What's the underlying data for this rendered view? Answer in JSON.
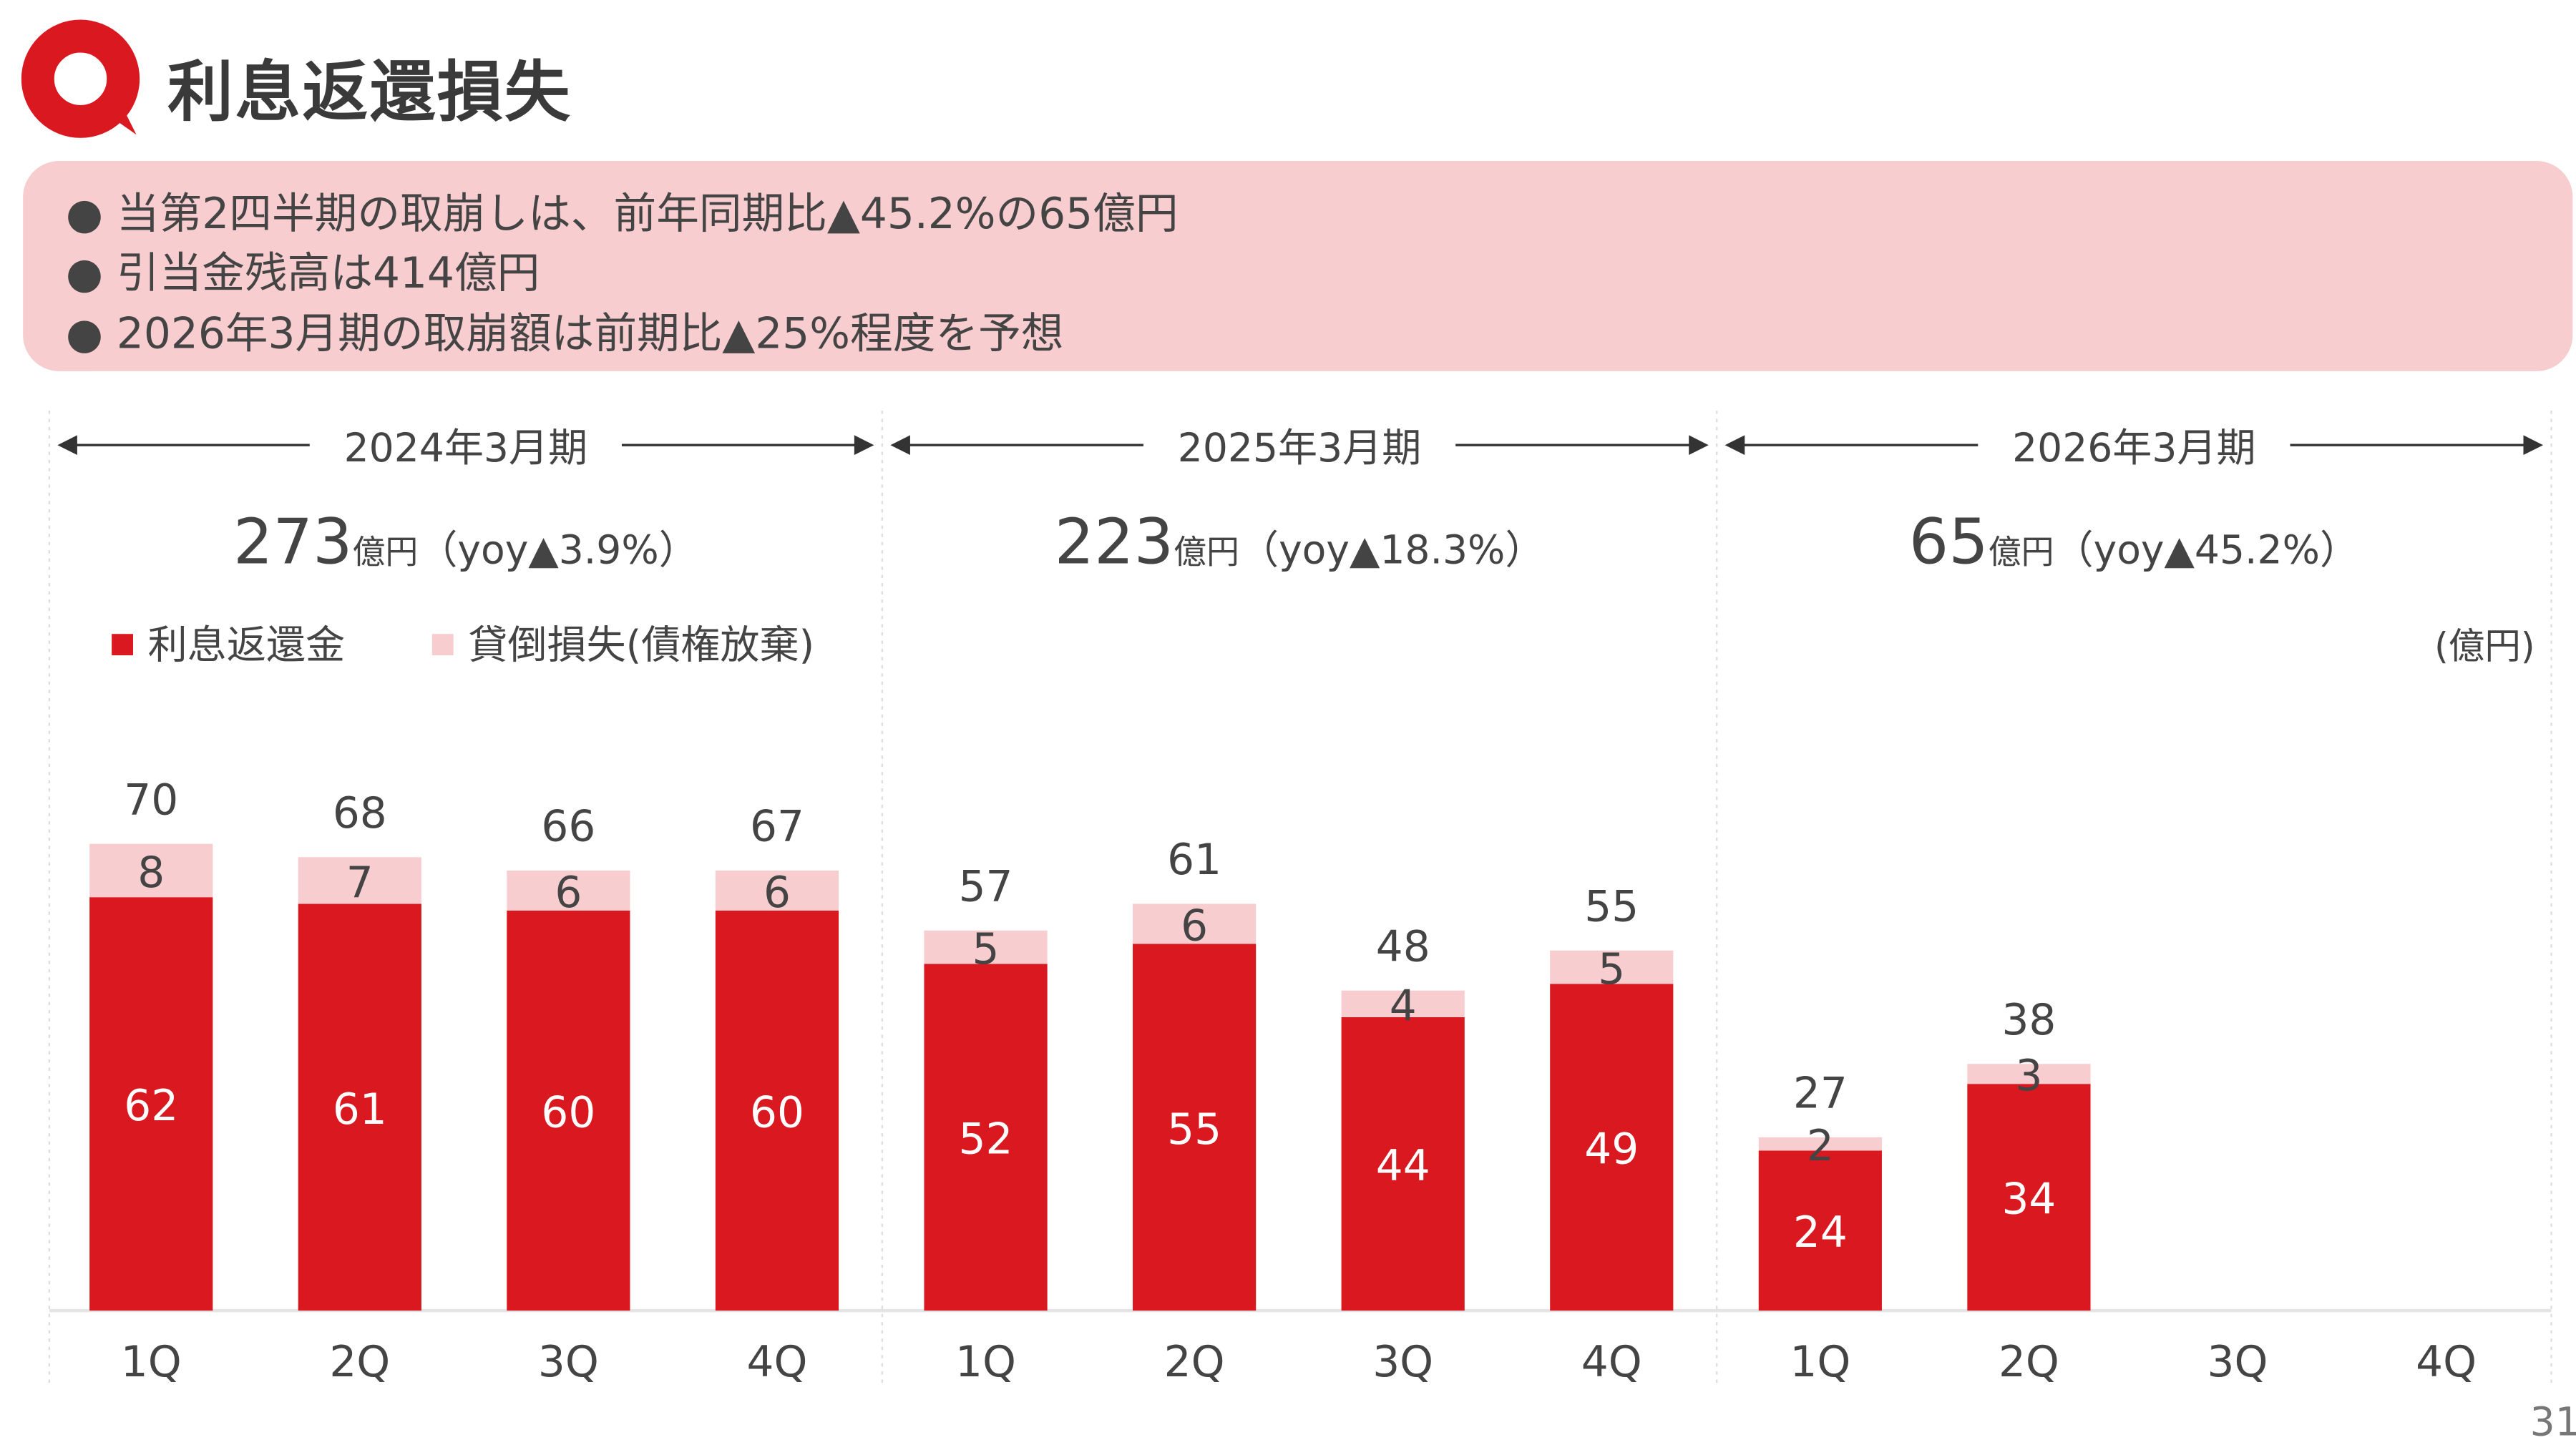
{
  "title": "利息返還損失",
  "summary": {
    "bullets": [
      "● 当第2四半期の取崩しは、前年同期比▲45.2%の65億円",
      "● 引当金残高は414億円",
      "● 2026年3月期の取崩額は前期比▲25%程度を予想"
    ]
  },
  "page_number": "31",
  "colors": {
    "primary": "#d9181f",
    "secondary": "#f8cdd0",
    "summary_bg": "#f8cdd0"
  },
  "chart_data": {
    "type": "bar",
    "stacked": true,
    "unit": "(億円)",
    "periods": [
      {
        "label": "2024年3月期",
        "total": "273",
        "total_unit": "億円",
        "yoy": "（yoy▲3.9%）"
      },
      {
        "label": "2025年3月期",
        "total": "223",
        "total_unit": "億円",
        "yoy": "（yoy▲18.3%）"
      },
      {
        "label": "2026年3月期",
        "total": "65",
        "total_unit": "億円",
        "yoy": "（yoy▲45.2%）"
      }
    ],
    "categories": [
      "1Q",
      "2Q",
      "3Q",
      "4Q",
      "1Q",
      "2Q",
      "3Q",
      "4Q",
      "1Q",
      "2Q",
      "3Q",
      "4Q"
    ],
    "series": [
      {
        "name": "利息返還金",
        "color": "#d9181f",
        "values": [
          62,
          61,
          60,
          60,
          52,
          55,
          44,
          49,
          24,
          34,
          null,
          null
        ]
      },
      {
        "name": "貸倒損失(債権放棄)",
        "color": "#f8cdd0",
        "values": [
          8,
          7,
          6,
          6,
          5,
          6,
          4,
          5,
          2,
          3,
          null,
          null
        ]
      }
    ],
    "totals": [
      70,
      68,
      66,
      67,
      57,
      61,
      48,
      55,
      27,
      38,
      null,
      null
    ],
    "legend": "top-left",
    "grid": false
  }
}
